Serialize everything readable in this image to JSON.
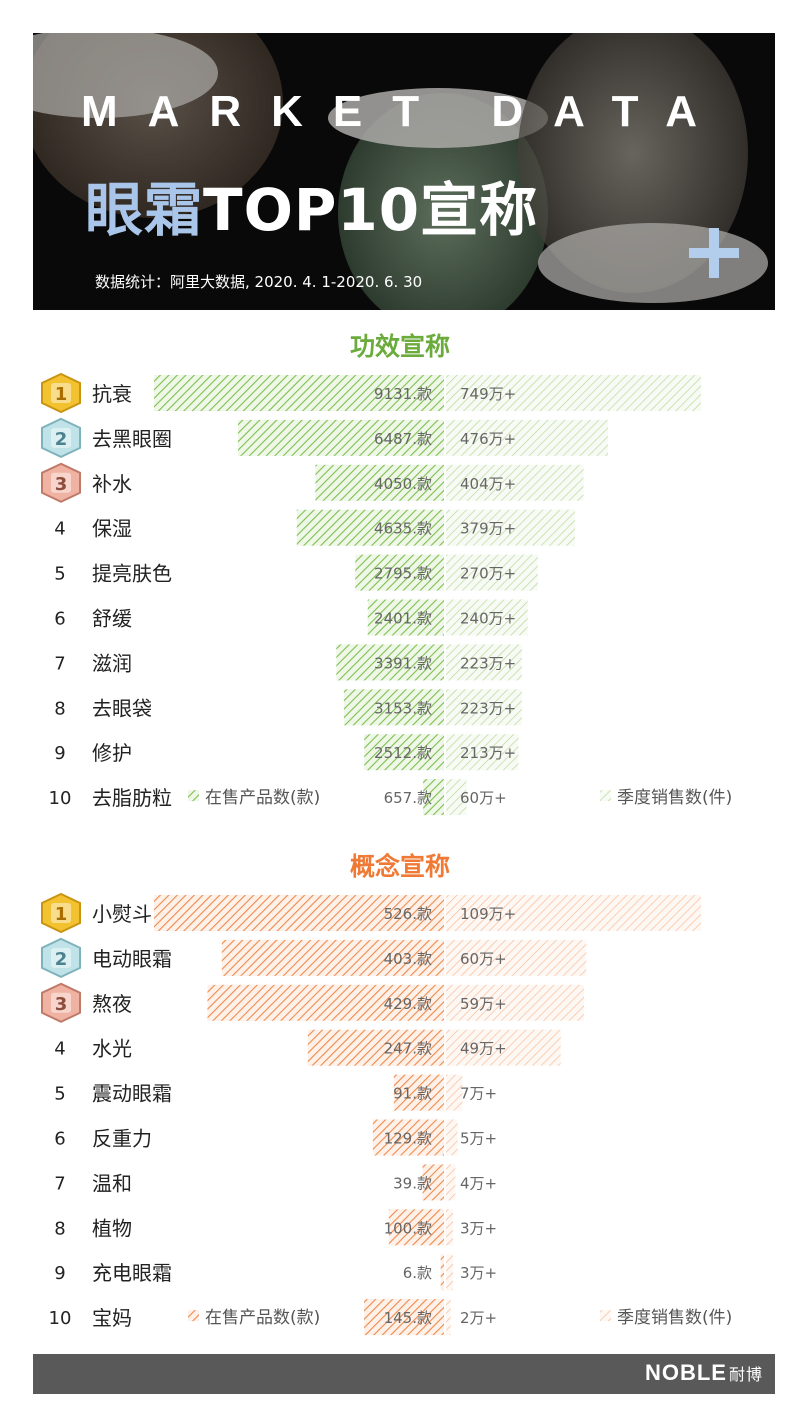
{
  "header": {
    "subtitle_en": "MARKET DATA",
    "title_highlight": "眼霜",
    "title_rest": "TOP10宣称",
    "source": "数据统计：阿里大数据, 2020. 4. 1-2020. 6. 30"
  },
  "footer": {
    "logo": "NOBLE",
    "logo_cn": "耐博"
  },
  "colors": {
    "efficacy": "#7fbf4d",
    "concept": "#f08a4b",
    "efficacy_title": "#6aab3c",
    "concept_title": "#f07a35"
  },
  "chart_data": [
    {
      "type": "bar",
      "title": "功效宣称",
      "ranks": [
        "1",
        "2",
        "3",
        "4",
        "5",
        "6",
        "7",
        "8",
        "9",
        "10"
      ],
      "categories": [
        "抗衰",
        "去黑眼圈",
        "补水",
        "保湿",
        "提亮肤色",
        "舒缓",
        "滋润",
        "去眼袋",
        "修护",
        "去脂肪粒"
      ],
      "series": [
        {
          "name": "在售产品数(款)",
          "values": [
            9131,
            6487,
            4050,
            4635,
            2795,
            2401,
            3391,
            3153,
            2512,
            657
          ],
          "labels": [
            "9131.款",
            "6487.款",
            "4050.款",
            "4635.款",
            "2795.款",
            "2401.款",
            "3391.款",
            "3153.款",
            "2512.款",
            "657.款"
          ]
        },
        {
          "name": "季度销售数(件)",
          "values": [
            749,
            476,
            404,
            379,
            270,
            240,
            223,
            223,
            213,
            60
          ],
          "labels": [
            "749万+",
            "476万+",
            "404万+",
            "379万+",
            "270万+",
            "240万+",
            "223万+",
            "223万+",
            "213万+",
            "60万+"
          ]
        }
      ]
    },
    {
      "type": "bar",
      "title": "概念宣称",
      "ranks": [
        "1",
        "2",
        "3",
        "4",
        "5",
        "6",
        "7",
        "8",
        "9",
        "10"
      ],
      "categories": [
        "小熨斗",
        "电动眼霜",
        "熬夜",
        "水光",
        "震动眼霜",
        "反重力",
        "温和",
        "植物",
        "充电眼霜",
        "宝妈"
      ],
      "series": [
        {
          "name": "在售产品数(款)",
          "values": [
            526,
            403,
            429,
            247,
            91,
            129,
            39,
            100,
            6,
            145
          ],
          "labels": [
            "526.款",
            "403.款",
            "429.款",
            "247.款",
            "91.款",
            "129.款",
            "39.款",
            "100.款",
            "6.款",
            "145.款"
          ]
        },
        {
          "name": "季度销售数(件)",
          "values": [
            109,
            60,
            59,
            49,
            7,
            5,
            4,
            3,
            3,
            2
          ],
          "labels": [
            "109万+",
            "60万+",
            "59万+",
            "49万+",
            "7万+",
            "5万+",
            "4万+",
            "3万+",
            "3万+",
            "2万+"
          ]
        }
      ]
    }
  ]
}
